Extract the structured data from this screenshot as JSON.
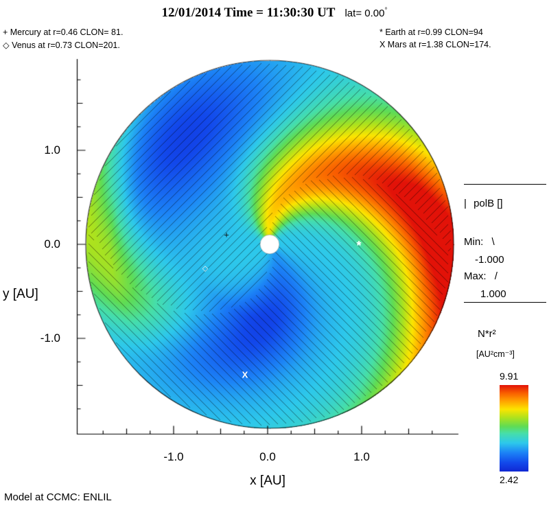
{
  "header": {
    "title_main": "12/01/2014 Time = 11:30:30 UT",
    "title_lat": "lat= 0.00",
    "degree": "°"
  },
  "planet_legend": {
    "mercury": "+ Mercury at r=0.46 CLON= 81.",
    "venus": "◇ Venus at r=0.73 CLON=201.",
    "earth": "* Earth at  r=0.99 CLON=94",
    "mars": "X Mars at r=1.38 CLON=174."
  },
  "axes": {
    "x_label": "x  [AU]",
    "y_label": "y  [AU]",
    "x_tick_labels": [
      "-1.0",
      "0.0",
      "1.0"
    ],
    "y_tick_labels": [
      "1.0",
      "0.0",
      "-1.0"
    ]
  },
  "polb_legend": {
    "sample": "|",
    "heading": "polB []",
    "min_label": "Min:",
    "min_glyph": "\\",
    "min_value": "-1.000",
    "max_label": "Max:",
    "max_glyph": "/",
    "max_value": "1.000"
  },
  "colorbar": {
    "quantity": "N*r²",
    "units": "[AU²cm⁻³]",
    "max": "9.91",
    "min": "2.42"
  },
  "markers": {
    "mercury": "+",
    "venus": "◇",
    "earth": "*",
    "mars": "X"
  },
  "footer": "Model at CCMC: ENLIL",
  "chart_data": {
    "type": "heatmap",
    "subtype": "polar-heliospheric-density-map",
    "model": "ENLIL",
    "provider": "Model at CCMC: ENLIL",
    "title": "12/01/2014 Time = 11:30:30 UT lat= 0.00°",
    "quantity": "N*r²",
    "units": "[AU²cm⁻³]",
    "value_range": [
      2.42,
      9.91
    ],
    "colormap": "rainbow, blue=2.42 to red=9.91",
    "colors": {
      "low": "#1028d2",
      "mid": "#2dc8eb",
      "high": "#e21208"
    },
    "polB": {
      "min": -1.0,
      "max": 1.0,
      "min_hatch": "\\",
      "max_hatch": "/"
    },
    "x_axis": {
      "label": "x [AU]",
      "ticks": [
        -1.0,
        0.0,
        1.0
      ],
      "range": [
        -1.96,
        1.96
      ]
    },
    "y_axis": {
      "label": "y [AU]",
      "ticks": [
        1.0,
        0.0,
        -1.0
      ],
      "range": [
        -1.96,
        1.96
      ]
    },
    "planets": [
      {
        "name": "Mercury",
        "symbol": "+",
        "r_au": 0.46,
        "clon": 81
      },
      {
        "name": "Venus",
        "symbol": "◇",
        "r_au": 0.73,
        "clon": 201
      },
      {
        "name": "Earth",
        "symbol": "*",
        "r_au": 0.99,
        "clon": 94
      },
      {
        "name": "Mars",
        "symbol": "X",
        "r_au": 1.38,
        "clon": 174
      }
    ],
    "features": "Parker-spiral solar-wind density: bright high-density arm (~9.9, red) winding clockwise from inner boundary near 100 deg to the +x edge; secondary yellow-green arm reaching the -x edge; low-density rarefaction regions (~2.4-3, dark blue) in the upper-left sector and in a spiral band south/south-west of the Sun (containing Mars); cyan background ~4.5-5; black polarity hatching over the whole disk; white Sun at origin."
  }
}
